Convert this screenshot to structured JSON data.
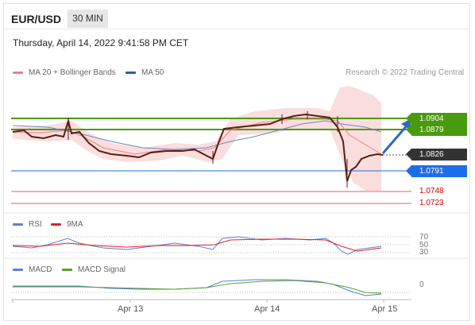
{
  "header": {
    "pair": "EUR/USD",
    "timeframe": "30 MIN",
    "datetime": "Thursday, April 14, 2022 9:41:58 PM CET"
  },
  "legend": {
    "ma_bb": "MA 20 + Bollinger Bands",
    "ma50": "MA 50",
    "credit": "Research © 2022 Trading Central",
    "colors": {
      "ma_bb": "#f08080",
      "ma50": "#2e5e9e"
    }
  },
  "levels": {
    "r2": "1.0904",
    "r1": "1.0879",
    "last": "1.0826",
    "s1": "1.0791",
    "s2": "1.0748",
    "s3": "1.0723",
    "colors": {
      "resistance": "#4a9a10",
      "support": "#1c6ee8",
      "last": "#333333",
      "minor_support": "#cc0000"
    }
  },
  "rsi": {
    "label": "RSI",
    "ma_label": "9MA",
    "levels": [
      "70",
      "50",
      "30"
    ],
    "colors": {
      "rsi": "#5b7ed8",
      "ma": "#e02020"
    }
  },
  "macd": {
    "label": "MACD",
    "signal_label": "MACD Signal",
    "zero": "0",
    "colors": {
      "macd": "#5b7ed8",
      "signal": "#5aa02c"
    }
  },
  "x_axis": {
    "ticks": [
      "Apr 13",
      "Apr 14",
      "Apr 15"
    ]
  }
}
